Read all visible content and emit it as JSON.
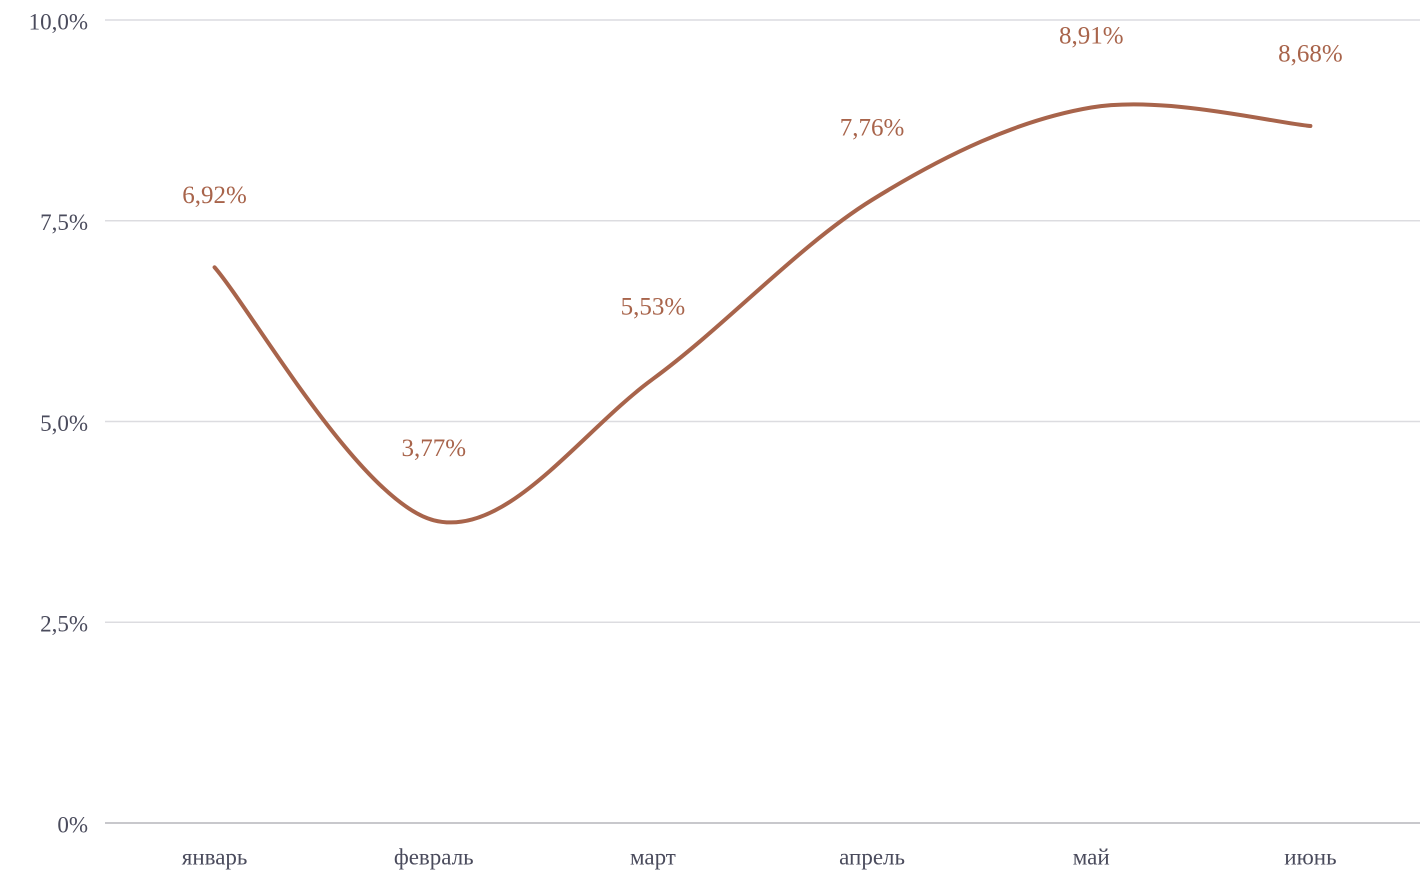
{
  "chart_data": {
    "type": "line",
    "categories": [
      "январь",
      "февраль",
      "март",
      "апрель",
      "май",
      "июнь"
    ],
    "values": [
      6.92,
      3.77,
      5.53,
      7.76,
      8.91,
      8.68
    ],
    "value_labels": [
      "6,92%",
      "3,77%",
      "5,53%",
      "7,76%",
      "8,91%",
      "8,68%"
    ],
    "color": "#a8644b",
    "ylim": [
      0,
      10
    ],
    "yticks": [
      {
        "value": 0,
        "label": "0%"
      },
      {
        "value": 2.5,
        "label": "2,5%"
      },
      {
        "value": 5,
        "label": "5,0%"
      },
      {
        "value": 7.5,
        "label": "7,5%"
      },
      {
        "value": 10,
        "label": "10,0%"
      }
    ],
    "grid": true
  }
}
